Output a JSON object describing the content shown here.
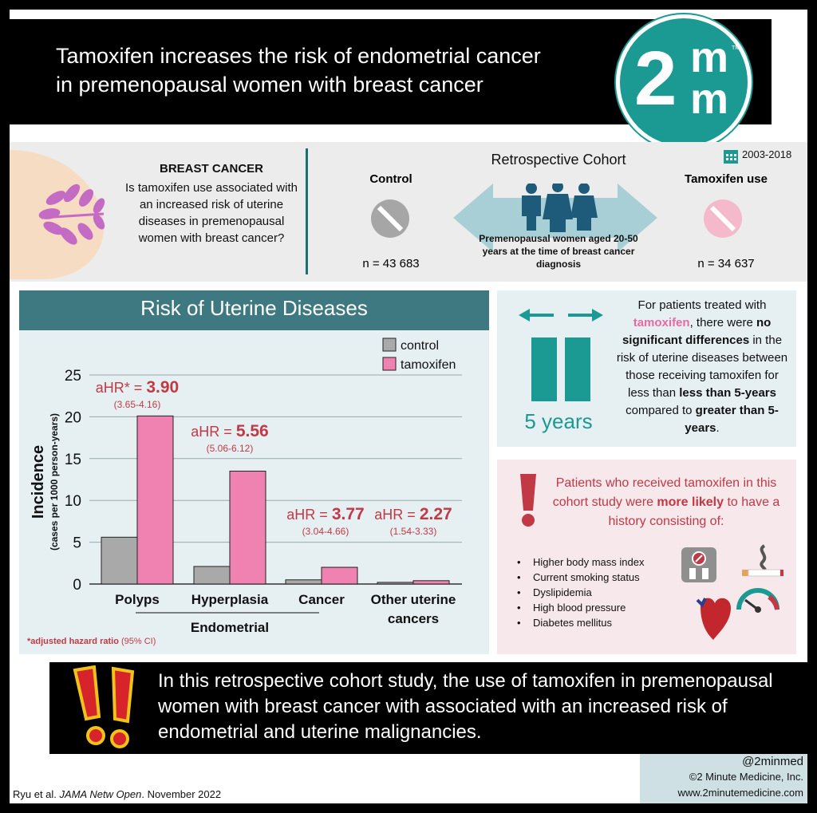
{
  "header": {
    "title_line1": "Tamoxifen increases the risk of endometrial cancer",
    "title_line2": "in premenopausal women with breast cancer",
    "logo": {
      "main": "2",
      "sup": "m",
      "sub": "m",
      "tm": "TM"
    }
  },
  "question": {
    "heading": "BREAST CANCER",
    "text": "Is tamoxifen use associated with an increased risk of uterine diseases in premenopausal women with breast cancer?"
  },
  "cohort": {
    "title": "Retrospective Cohort",
    "date_range": "2003-2018",
    "control_label": "Control",
    "tamoxifen_label": "Tamoxifen use",
    "description": "Premenopausal women aged 20-50 years at the time of breast cancer diagnosis",
    "control_n": "n = 43 683",
    "tamoxifen_n": "n = 34 637",
    "icons": [
      "breast-icon",
      "pill-icon",
      "people-icon",
      "calendar-icon",
      "double-arrow-icon"
    ]
  },
  "risk": {
    "title": "Risk of Uterine Diseases",
    "group_label": "Endometrial",
    "footnote_bold": "*adjusted hazard ratio",
    "footnote_ci": "(95% CI)"
  },
  "chart_data": {
    "type": "bar",
    "categories": [
      "Polyps",
      "Hyperplasia",
      "Cancer",
      "Other uterine cancers"
    ],
    "series": [
      {
        "name": "control",
        "values": [
          5.6,
          2.1,
          0.5,
          0.2
        ],
        "color": "#a9a9a9"
      },
      {
        "name": "tamoxifen",
        "values": [
          20.1,
          13.5,
          2.0,
          0.4
        ],
        "color": "#ef82b0"
      }
    ],
    "ylabel": "Incidence",
    "ylabel_sub": "(cases per 1000 person-years)",
    "ylim": [
      0,
      25
    ],
    "yticks": [
      0,
      5,
      10,
      15,
      20,
      25
    ],
    "grid": true,
    "legend": "top-right",
    "annotations": [
      {
        "label": "aHR* = ",
        "value": "3.90",
        "ci": "(3.65-4.16)"
      },
      {
        "label": "aHR = ",
        "value": "5.56",
        "ci": "(5.06-6.12)"
      },
      {
        "label": "aHR = ",
        "value": "3.77",
        "ci": "(3.04-4.66)"
      },
      {
        "label": "aHR = ",
        "value": "2.27",
        "ci": "(1.54-3.33)"
      }
    ]
  },
  "duration": {
    "label": "5 years",
    "text_1": "For patients treated with ",
    "text_tam": "tamoxifen",
    "text_2": ", there were ",
    "text_bold1": "no significant differences",
    "text_3": " in the risk of uterine diseases between those receiving tamoxifen for less than ",
    "text_bold2": "less than 5-years",
    "text_4": " compared to ",
    "text_bold3": "greater than 5-years",
    "text_5": "."
  },
  "likely": {
    "text_1": "Patients who received tamoxifen in this cohort study were ",
    "text_bold": "more likely",
    "text_2": " to have a history consisting of:",
    "items": [
      "Higher body mass index",
      "Current smoking status",
      "Dyslipidemia",
      "High blood pressure",
      "Diabetes mellitus"
    ],
    "icons": [
      "exclamation-icon",
      "scale-icon",
      "cigarette-icon",
      "heart-icon",
      "gauge-icon"
    ]
  },
  "conclusion": {
    "text": "In this retrospective cohort study, the use of tamoxifen in premenopausal women with breast cancer with associated with an increased risk of endometrial and uterine malignancies."
  },
  "footer": {
    "handle": "@2minmed",
    "copyright": "©2 Minute Medicine, Inc.",
    "url": "www.2minutemedicine.com",
    "citation_authors": "Ryu et al. ",
    "citation_journal": "JAMA Netw Open",
    "citation_date": ". November 2022"
  },
  "colors": {
    "teal": "#1a9a92",
    "panel_header": "#3e7880",
    "accent_red": "#c13945",
    "tamoxifen_pink": "#ef82b0",
    "control_gray": "#a9a9a9"
  }
}
